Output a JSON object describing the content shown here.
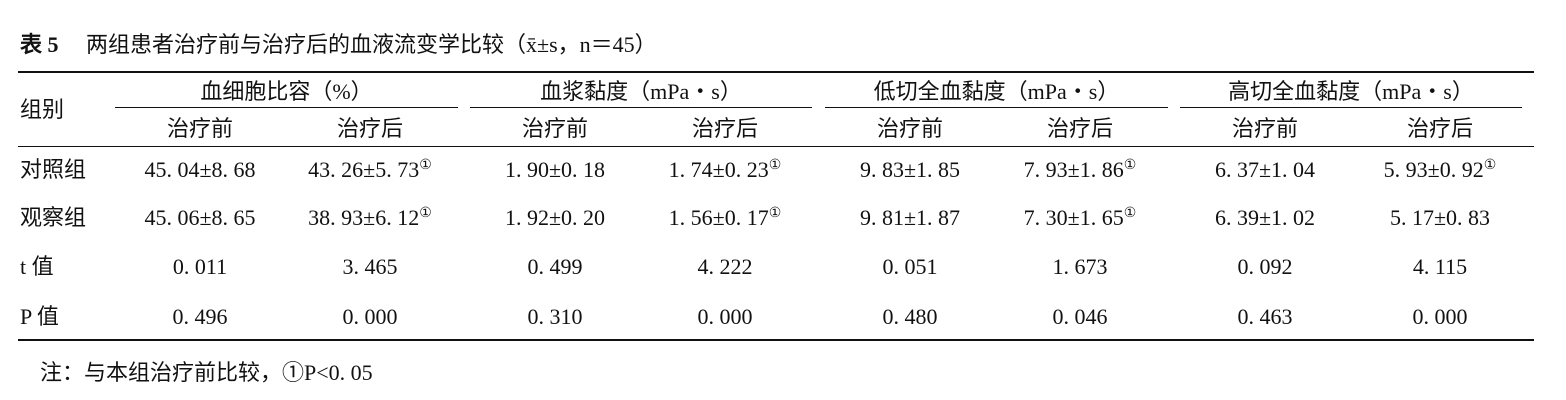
{
  "caption": {
    "label": "表 5",
    "title": "两组患者治疗前与治疗后的血液流变学比较（x̄±s，n＝45）"
  },
  "table": {
    "corner": "组别",
    "groups": [
      "血细胞比容（%）",
      "血浆黏度（mPa・s）",
      "低切全血黏度（mPa・s）",
      "高切全血黏度（mPa・s）"
    ],
    "subheaders": [
      "治疗前",
      "治疗后",
      "治疗前",
      "治疗后",
      "治疗前",
      "治疗后",
      "治疗前",
      "治疗后"
    ],
    "rows": [
      {
        "label": "对照组",
        "cells": [
          "45. 04±8. 68",
          {
            "text": "43. 26±5. 73",
            "mark": "①"
          },
          "1. 90±0. 18",
          {
            "text": "1. 74±0. 23",
            "mark": "①"
          },
          "9. 83±1. 85",
          {
            "text": "7. 93±1. 86",
            "mark": "①"
          },
          "6. 37±1. 04",
          {
            "text": "5. 93±0. 92",
            "mark": "①"
          }
        ]
      },
      {
        "label": "观察组",
        "cells": [
          "45. 06±8. 65",
          {
            "text": "38. 93±6. 12",
            "mark": "①"
          },
          "1. 92±0. 20",
          {
            "text": "1. 56±0. 17",
            "mark": "①"
          },
          "9. 81±1. 87",
          {
            "text": "7. 30±1. 65",
            "mark": "①"
          },
          "6. 39±1. 02",
          "5. 17±0. 83"
        ]
      },
      {
        "label": "t 值",
        "cells": [
          "0. 011",
          "3. 465",
          "0. 499",
          "4. 222",
          "0. 051",
          "1. 673",
          "0. 092",
          "4. 115"
        ]
      },
      {
        "label": "P 值",
        "cells": [
          "0. 496",
          "0. 000",
          "0. 310",
          "0. 000",
          "0. 480",
          "0. 046",
          "0. 463",
          "0. 000"
        ]
      }
    ]
  },
  "note": "注：与本组治疗前比较，①P<0. 05"
}
